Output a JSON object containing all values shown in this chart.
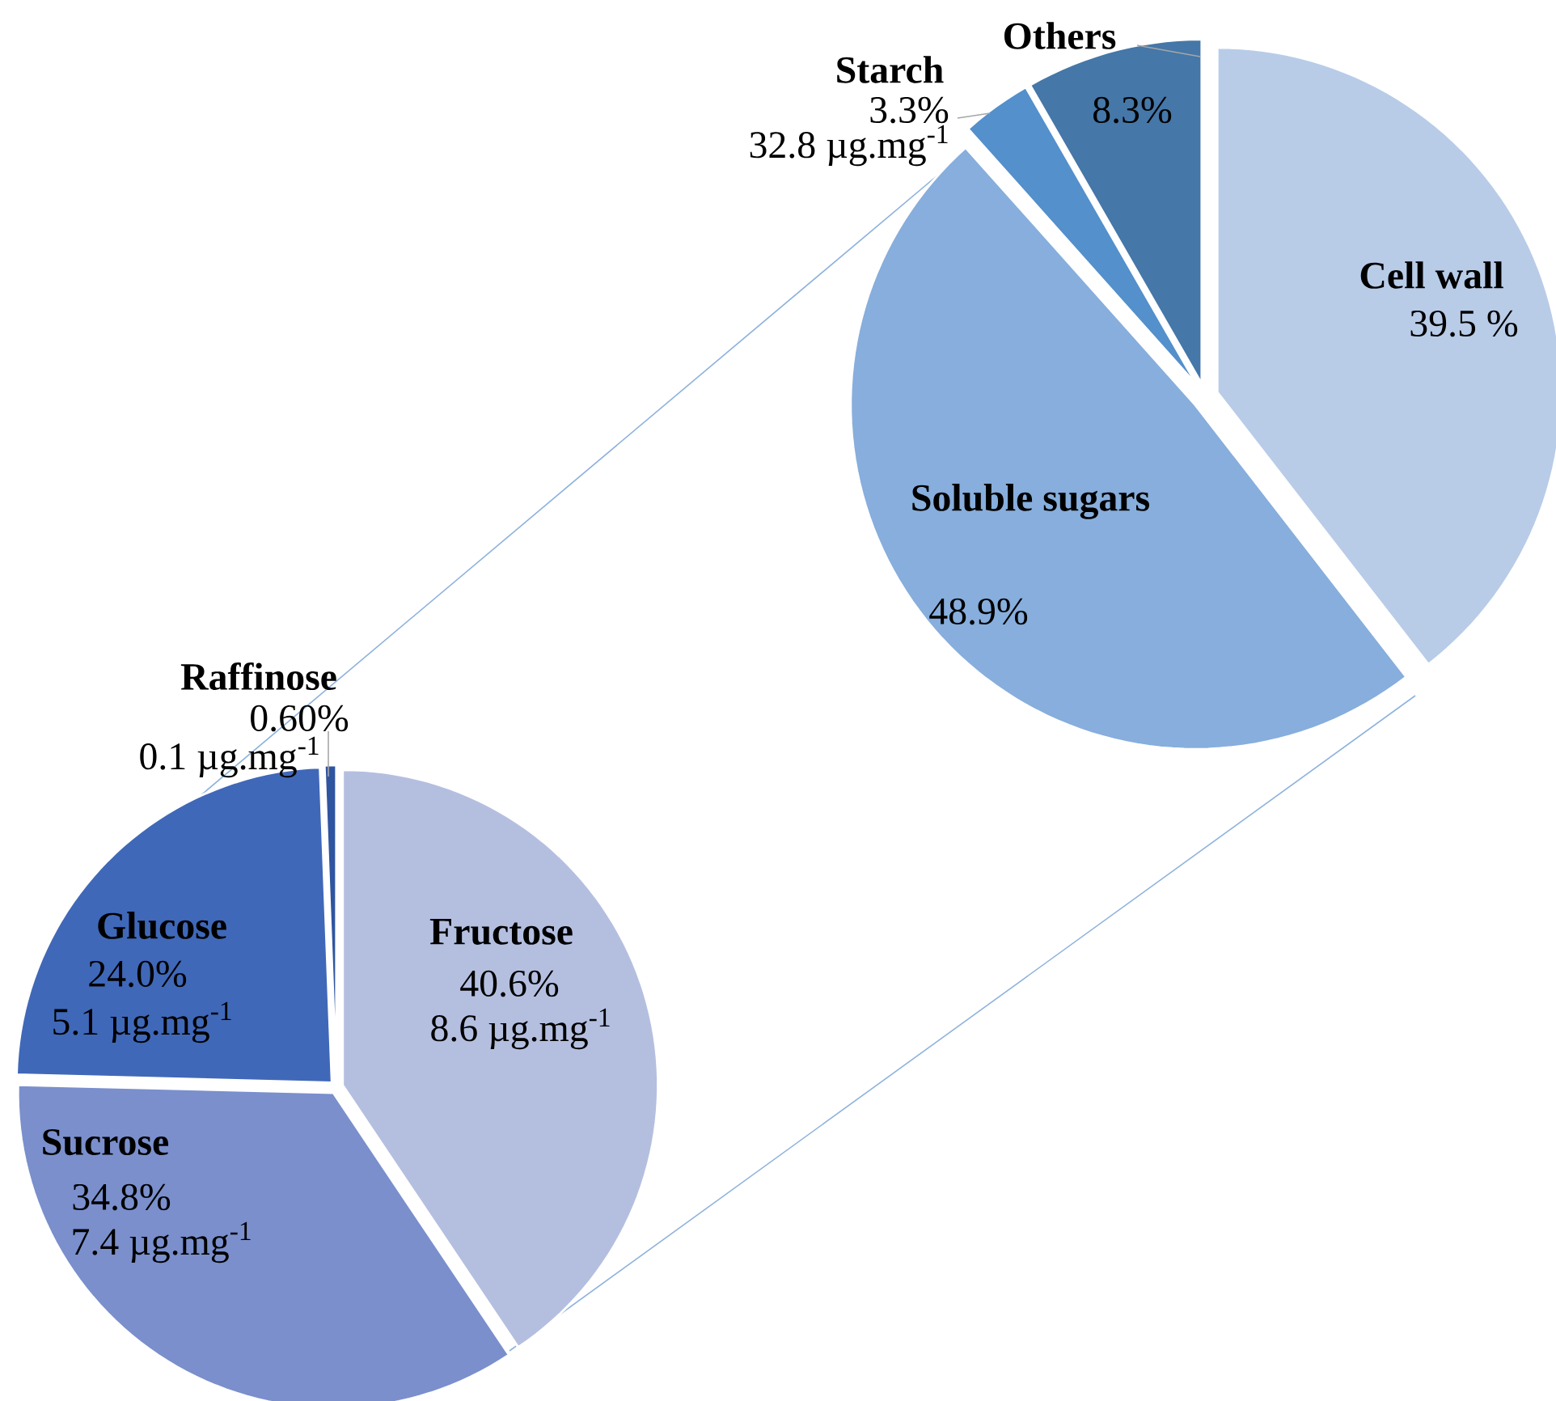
{
  "chart_data": [
    {
      "type": "pie",
      "categories": [
        "Cell wall",
        "Soluble sugars",
        "Starch",
        "Others"
      ],
      "values": [
        39.5,
        48.9,
        3.3,
        8.3
      ],
      "colors": [
        "#b8cce8",
        "#87aedc",
        "#5390cc",
        "#4577a8"
      ],
      "value_labels": [
        "39.5 %",
        "48.9%",
        "3.3%",
        "8.3%"
      ],
      "annotations": [
        "32.8 µg.mg$^{-1}$"
      ]
    },
    {
      "type": "pie",
      "categories": [
        "Fructose",
        "Sucrose",
        "Glucose",
        "Raffinose"
      ],
      "values": [
        40.6,
        34.8,
        24.0,
        0.6
      ],
      "colors": [
        "#b4bfe0",
        "#7a8fcc",
        "#4068b8",
        "#2f55a0"
      ],
      "value_labels": [
        "40.6%",
        "34.8%",
        "24.0%",
        "0.60%"
      ],
      "annotations": [
        "8.6 µg.mg$^{-1}$",
        "7.4 µg.mg$^{-1}$",
        "5.1 µg.mg$^{-1}$",
        "0.1 µg.mg$^{-1}$"
      ]
    }
  ]
}
